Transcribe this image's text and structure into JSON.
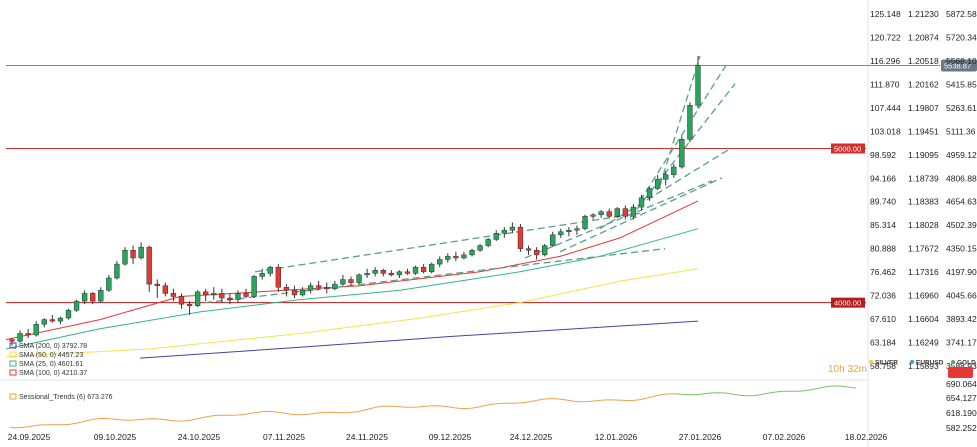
{
  "chart_data": {
    "type": "candlestick",
    "symbol_tags": [
      {
        "name": "SILVER",
        "color": "#f4c842"
      },
      {
        "name": "EURUSD",
        "color": "#3a9bd9"
      },
      {
        "name": "GOLD",
        "color": "#4caf50"
      }
    ],
    "axes": {
      "silver": [
        "125.148",
        "120.722",
        "116.296",
        "111.870",
        "107.444",
        "103.018",
        "98.592",
        "94.166",
        "89.740",
        "85.314",
        "80.888",
        "76.462",
        "72.036",
        "67.610",
        "63.184",
        "58.758"
      ],
      "eurusd": [
        "1.21230",
        "1.20874",
        "1.20518",
        "1.20162",
        "1.19807",
        "1.19451",
        "1.19095",
        "1.18739",
        "1.18383",
        "1.18028",
        "1.17672",
        "1.17316",
        "1.16960",
        "1.16604",
        "1.16249",
        "1.15893"
      ],
      "gold": [
        "5872.58",
        "5720.34",
        "5568.10",
        "5415.85",
        "5263.61",
        "5111.36",
        "4959.12",
        "4806.88",
        "4654.63",
        "4502.39",
        "4350.15",
        "4197.90",
        "4045.66",
        "3893.42",
        "3741.17",
        "3588.93"
      ],
      "price_tag": "5538.87",
      "ylim": [
        3588.93,
        5872.58
      ]
    },
    "levels": [
      {
        "label": "5000.00",
        "value": 5000,
        "color": "#d32f2f"
      },
      {
        "label": "4000.00",
        "value": 4000,
        "color": "#b71c1c"
      }
    ],
    "current_price_line": 5538.87,
    "x_dates": [
      "24.09.2025",
      "09.10.2025",
      "24.10.2025",
      "07.11.2025",
      "24.11.2025",
      "09.12.2025",
      "24.12.2025",
      "12.01.2026",
      "27.01.2026",
      "07.02.2026",
      "18.02.2026"
    ],
    "sma_legend": [
      {
        "label": "SMA (200, 0) 3792.78",
        "color": "#4b3fa8"
      },
      {
        "label": "SMA (50, 0) 4457.23",
        "color": "#f6e24a"
      },
      {
        "label": "SMA (25, 0) 4601.61",
        "color": "#34b58a"
      },
      {
        "label": "SMA (100, 0) 4210.37",
        "color": "#e53935"
      }
    ],
    "timer": "10h 32m",
    "candles": [
      [
        3760,
        3770,
        3720,
        3750
      ],
      [
        3750,
        3820,
        3740,
        3800
      ],
      [
        3800,
        3830,
        3770,
        3790
      ],
      [
        3790,
        3880,
        3780,
        3860
      ],
      [
        3860,
        3900,
        3840,
        3890
      ],
      [
        3890,
        3920,
        3870,
        3880
      ],
      [
        3880,
        3910,
        3860,
        3900
      ],
      [
        3900,
        3960,
        3890,
        3950
      ],
      [
        3950,
        4020,
        3940,
        4010
      ],
      [
        4010,
        4080,
        3990,
        4060
      ],
      [
        4060,
        4070,
        3990,
        4010
      ],
      [
        4010,
        4100,
        4000,
        4080
      ],
      [
        4080,
        4180,
        4070,
        4160
      ],
      [
        4160,
        4270,
        4150,
        4250
      ],
      [
        4250,
        4360,
        4240,
        4340
      ],
      [
        4340,
        4370,
        4250,
        4290
      ],
      [
        4290,
        4390,
        4280,
        4360
      ],
      [
        4360,
        4370,
        4070,
        4120
      ],
      [
        4120,
        4150,
        4030,
        4110
      ],
      [
        4110,
        4130,
        4040,
        4060
      ],
      [
        4060,
        4090,
        4010,
        4040
      ],
      [
        4040,
        4060,
        3960,
        3990
      ],
      [
        3990,
        4010,
        3920,
        3980
      ],
      [
        3980,
        4080,
        3970,
        4070
      ],
      [
        4070,
        4090,
        4010,
        4050
      ],
      [
        4050,
        4100,
        4020,
        4060
      ],
      [
        4060,
        4090,
        4000,
        4030
      ],
      [
        4030,
        4060,
        3990,
        4020
      ],
      [
        4020,
        4080,
        4000,
        4060
      ],
      [
        4060,
        4090,
        4030,
        4040
      ],
      [
        4040,
        4180,
        4030,
        4170
      ],
      [
        4170,
        4220,
        4150,
        4190
      ],
      [
        4190,
        4240,
        4170,
        4230
      ],
      [
        4230,
        4250,
        4070,
        4100
      ],
      [
        4100,
        4120,
        4040,
        4080
      ],
      [
        4080,
        4110,
        4030,
        4050
      ],
      [
        4050,
        4100,
        4040,
        4080
      ],
      [
        4080,
        4130,
        4060,
        4110
      ],
      [
        4110,
        4140,
        4080,
        4100
      ],
      [
        4100,
        4130,
        4060,
        4090
      ],
      [
        4090,
        4140,
        4080,
        4120
      ],
      [
        4120,
        4180,
        4110,
        4150
      ],
      [
        4150,
        4170,
        4110,
        4130
      ],
      [
        4130,
        4190,
        4120,
        4180
      ],
      [
        4180,
        4220,
        4160,
        4190
      ],
      [
        4190,
        4230,
        4170,
        4210
      ],
      [
        4210,
        4220,
        4170,
        4190
      ],
      [
        4190,
        4210,
        4170,
        4180
      ],
      [
        4180,
        4210,
        4160,
        4200
      ],
      [
        4200,
        4220,
        4180,
        4190
      ],
      [
        4190,
        4240,
        4180,
        4230
      ],
      [
        4230,
        4250,
        4190,
        4200
      ],
      [
        4200,
        4260,
        4190,
        4250
      ],
      [
        4250,
        4300,
        4230,
        4280
      ],
      [
        4280,
        4320,
        4260,
        4300
      ],
      [
        4300,
        4330,
        4270,
        4290
      ],
      [
        4290,
        4330,
        4280,
        4310
      ],
      [
        4310,
        4350,
        4300,
        4340
      ],
      [
        4340,
        4380,
        4330,
        4370
      ],
      [
        4370,
        4420,
        4360,
        4410
      ],
      [
        4410,
        4470,
        4400,
        4450
      ],
      [
        4450,
        4490,
        4420,
        4470
      ],
      [
        4470,
        4520,
        4450,
        4490
      ],
      [
        4490,
        4510,
        4330,
        4350
      ],
      [
        4350,
        4370,
        4310,
        4340
      ],
      [
        4340,
        4360,
        4280,
        4310
      ],
      [
        4310,
        4380,
        4300,
        4370
      ],
      [
        4370,
        4460,
        4360,
        4440
      ],
      [
        4440,
        4480,
        4420,
        4460
      ],
      [
        4460,
        4490,
        4430,
        4470
      ],
      [
        4470,
        4500,
        4440,
        4480
      ],
      [
        4480,
        4570,
        4470,
        4560
      ],
      [
        4560,
        4580,
        4540,
        4570
      ],
      [
        4570,
        4600,
        4550,
        4590
      ],
      [
        4590,
        4610,
        4550,
        4560
      ],
      [
        4560,
        4620,
        4550,
        4610
      ],
      [
        4610,
        4630,
        4540,
        4560
      ],
      [
        4560,
        4640,
        4540,
        4620
      ],
      [
        4620,
        4700,
        4600,
        4680
      ],
      [
        4680,
        4750,
        4660,
        4740
      ],
      [
        4740,
        4830,
        4730,
        4800
      ],
      [
        4800,
        4850,
        4760,
        4830
      ],
      [
        4830,
        4900,
        4810,
        4880
      ],
      [
        4880,
        5080,
        4870,
        5060
      ],
      [
        5060,
        5300,
        5040,
        5280
      ],
      [
        5280,
        5600,
        5260,
        5538
      ]
    ],
    "sessional_trends": {
      "label": "Sessional_Trends (6) 673.276",
      "ticks": [
        "690.064",
        "654.127",
        "618.190",
        "582.252"
      ]
    }
  }
}
